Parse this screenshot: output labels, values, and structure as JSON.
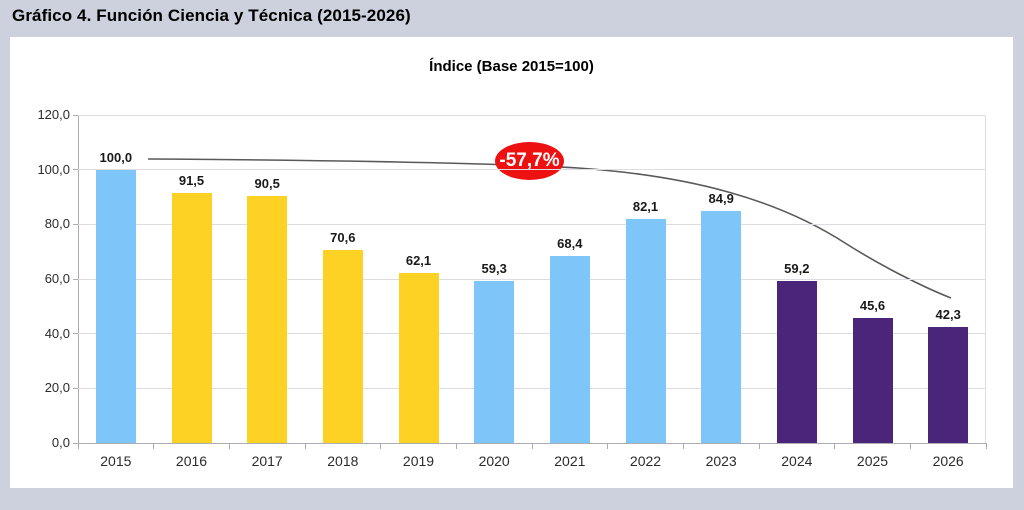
{
  "page": {
    "title": "Gráfico 4. Función Ciencia y Técnica (2015-2026)"
  },
  "chart": {
    "subtitle": "Índice (Base 2015=100)",
    "badge_label": "-57,7%",
    "badge_color": "#EE1111"
  },
  "chart_data": {
    "type": "bar",
    "title": "Índice (Base 2015=100)",
    "categories": [
      "2015",
      "2016",
      "2017",
      "2018",
      "2019",
      "2020",
      "2021",
      "2022",
      "2023",
      "2024",
      "2025",
      "2026"
    ],
    "values": [
      100.0,
      91.5,
      90.5,
      70.6,
      62.1,
      59.3,
      68.4,
      82.1,
      84.9,
      59.2,
      45.6,
      42.3
    ],
    "value_labels": [
      "100,0",
      "91,5",
      "90,5",
      "70,6",
      "62,1",
      "59,3",
      "68,4",
      "82,1",
      "84,9",
      "59,2",
      "45,6",
      "42,3"
    ],
    "bar_colors": [
      "#7EC6FA",
      "#FED125",
      "#FED125",
      "#FED125",
      "#FED125",
      "#7EC6FA",
      "#7EC6FA",
      "#7EC6FA",
      "#7EC6FA",
      "#4B2579",
      "#4B2579",
      "#4B2579"
    ],
    "color_legend": {
      "#7EC6FA": "light-blue",
      "#FED125": "yellow",
      "#4B2579": "dark-purple"
    },
    "xlabel": "",
    "ylabel": "",
    "ylim": [
      0,
      120
    ],
    "ytick_step": 20,
    "ytick_labels": [
      "0,0",
      "20,0",
      "40,0",
      "60,0",
      "80,0",
      "100,0",
      "120,0"
    ],
    "grid": true,
    "legend": "none",
    "annotation": {
      "label": "-57,7%",
      "shape": "red-ellipse",
      "meaning": "total decline from 2015 to 2026"
    },
    "trendline": {
      "color": "#595959",
      "from": "2015 value 100",
      "to": "2026, curving downward"
    }
  }
}
